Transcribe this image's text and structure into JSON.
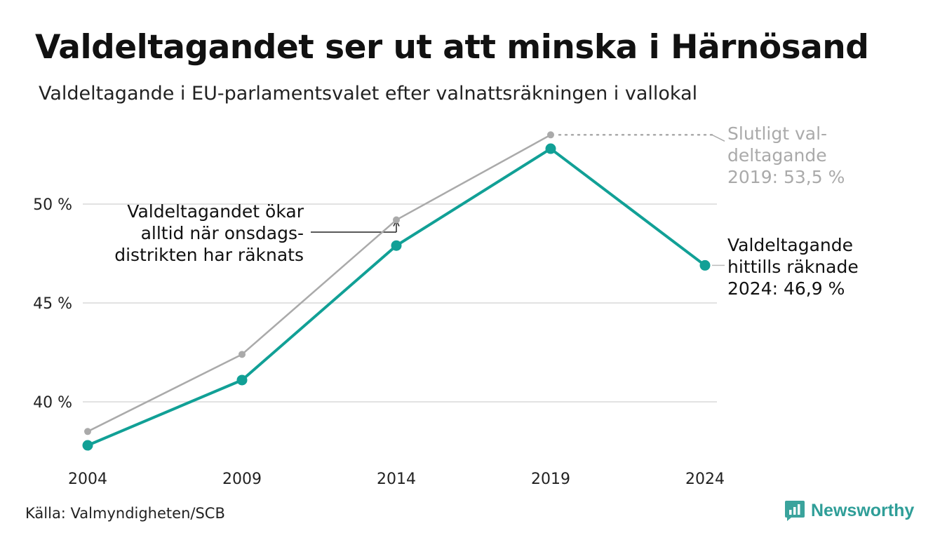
{
  "header": {
    "title": "Valdeltagandet ser ut att minska i Härnösand",
    "subtitle": "Valdeltagande i EU-parlamentsvalet efter valnattsräkningen i vallokal"
  },
  "footer": {
    "source": "Källa: Valmyndigheten/SCB",
    "brand": "Newsworthy"
  },
  "colors": {
    "primary": "#11a096",
    "secondary": "#aaaaaa",
    "grid": "#e2e2e2",
    "brand": "#2f9e98"
  },
  "chart_data": {
    "type": "line",
    "x": [
      2004,
      2009,
      2014,
      2019,
      2024
    ],
    "ylim": [
      37.5,
      53.5
    ],
    "y_ticks": [
      40,
      45,
      50
    ],
    "y_tick_labels": [
      "40 %",
      "45 %",
      "50 %"
    ],
    "x_tick_labels": [
      "2004",
      "2009",
      "2014",
      "2019",
      "2024"
    ],
    "grid": true,
    "series": [
      {
        "key": "final",
        "values": [
          38.5,
          42.4,
          49.2,
          53.5,
          null
        ]
      },
      {
        "key": "election_night",
        "values": [
          37.8,
          41.1,
          47.9,
          52.8,
          46.9
        ]
      }
    ],
    "annotations": {
      "final_2019": [
        "Slutligt val-",
        "deltagande",
        "2019: 53,5 %"
      ],
      "current_2024": [
        "Valdeltagande",
        "hittills räknade",
        "2024: 46,9 %"
      ],
      "note": [
        "Valdeltagandet ökar",
        "alltid när onsdags-",
        "distrikten har räknats"
      ]
    }
  }
}
